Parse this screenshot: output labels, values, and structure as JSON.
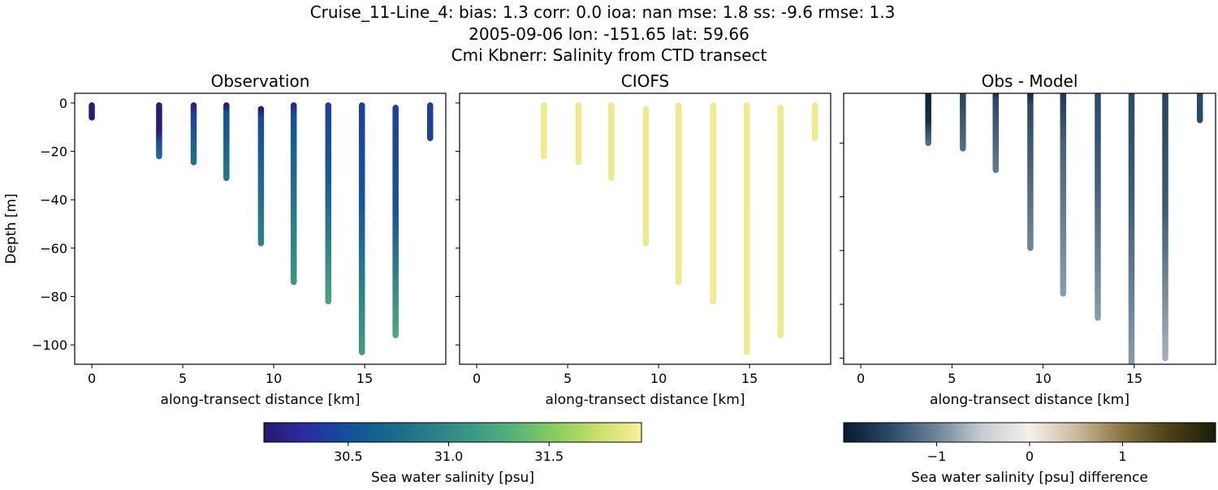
{
  "title_lines": [
    "Cruise_11-Line_4: bias: 1.3  corr: 0.0  ioa: nan  mse: 1.8  ss: -9.6  rmse: 1.3",
    "2005-09-06 lon: -151.65 lat: 59.66",
    "Cmi Kbnerr: Salinity from CTD transect"
  ],
  "chart_data": [
    {
      "type": "scatter",
      "title": "Observation",
      "xlabel": "along-transect distance [km]",
      "ylabel": "Depth [m]",
      "xlim": [
        -0.94,
        19.46
      ],
      "ylim": [
        -108,
        4
      ],
      "xticks": [
        0,
        5,
        10,
        15
      ],
      "yticks": [
        0,
        -20,
        -40,
        -60,
        -80,
        -100
      ],
      "colormap": "haline",
      "profiles": [
        {
          "x": 0.0,
          "stops": [
            [
              -1,
              30.1
            ],
            [
              -6,
              30.12
            ]
          ]
        },
        {
          "x": 3.7,
          "stops": [
            [
              -1,
              30.1
            ],
            [
              -12,
              30.12
            ],
            [
              -15,
              30.4
            ],
            [
              -22,
              30.75
            ]
          ]
        },
        {
          "x": 5.6,
          "stops": [
            [
              -1,
              30.15
            ],
            [
              -5,
              30.4
            ],
            [
              -24.5,
              30.8
            ]
          ]
        },
        {
          "x": 7.4,
          "stops": [
            [
              -1,
              30.1
            ],
            [
              -4,
              30.5
            ],
            [
              -31,
              30.85
            ]
          ]
        },
        {
          "x": 9.3,
          "stops": [
            [
              -2.5,
              30.1
            ],
            [
              -6,
              30.45
            ],
            [
              -58,
              30.95
            ]
          ]
        },
        {
          "x": 11.1,
          "stops": [
            [
              -1,
              30.2
            ],
            [
              -5,
              30.5
            ],
            [
              -20,
              30.65
            ],
            [
              -74,
              31.1
            ]
          ]
        },
        {
          "x": 13.0,
          "stops": [
            [
              -1,
              30.4
            ],
            [
              -30,
              30.6
            ],
            [
              -82,
              31.2
            ]
          ]
        },
        {
          "x": 14.85,
          "stops": [
            [
              -1,
              30.4
            ],
            [
              -40,
              30.55
            ],
            [
              -103,
              31.15
            ]
          ]
        },
        {
          "x": 16.7,
          "stops": [
            [
              -2,
              30.4
            ],
            [
              -45,
              30.55
            ],
            [
              -96,
              31.25
            ]
          ]
        },
        {
          "x": 18.6,
          "stops": [
            [
              -1,
              30.38
            ],
            [
              -14.5,
              30.4
            ]
          ]
        }
      ]
    },
    {
      "type": "scatter",
      "title": "CIOFS",
      "xlabel": "along-transect distance [km]",
      "xlim": [
        -0.94,
        19.46
      ],
      "ylim": [
        -108,
        4
      ],
      "xticks": [
        0,
        5,
        10,
        15
      ],
      "yticks": [
        0,
        -20,
        -40,
        -60,
        -80,
        -100
      ],
      "colormap": "haline",
      "profiles": [
        {
          "x": 3.7,
          "stops": [
            [
              -1,
              31.9
            ],
            [
              -22,
              31.9
            ]
          ]
        },
        {
          "x": 5.6,
          "stops": [
            [
              -1,
              31.9
            ],
            [
              -24.5,
              31.9
            ]
          ]
        },
        {
          "x": 7.4,
          "stops": [
            [
              -1,
              31.9
            ],
            [
              -31,
              31.9
            ]
          ]
        },
        {
          "x": 9.3,
          "stops": [
            [
              -2.5,
              31.9
            ],
            [
              -58,
              31.9
            ]
          ]
        },
        {
          "x": 11.1,
          "stops": [
            [
              -1,
              31.9
            ],
            [
              -74,
              31.9
            ]
          ]
        },
        {
          "x": 13.0,
          "stops": [
            [
              -1,
              31.9
            ],
            [
              -82,
              31.9
            ]
          ]
        },
        {
          "x": 14.85,
          "stops": [
            [
              -1,
              31.9
            ],
            [
              -103,
              31.9
            ]
          ]
        },
        {
          "x": 16.7,
          "stops": [
            [
              -2,
              31.9
            ],
            [
              -96,
              31.9
            ]
          ]
        },
        {
          "x": 18.6,
          "stops": [
            [
              -1,
              31.9
            ],
            [
              -14.5,
              31.9
            ]
          ]
        }
      ]
    },
    {
      "type": "scatter",
      "title": "Obs - Model",
      "xlabel": "along-transect distance [km]",
      "xlim": [
        -0.94,
        19.46
      ],
      "ylim": [
        -102.3,
        -1.5
      ],
      "xticks": [
        0,
        5,
        10,
        15
      ],
      "yticks": [
        -20,
        -40,
        -60,
        -80,
        -100
      ],
      "colormap": "diff",
      "profiles": [
        {
          "x": 3.7,
          "stops": [
            [
              -1,
              -1.9
            ],
            [
              -12,
              -1.8
            ],
            [
              -15,
              -1.5
            ],
            [
              -20,
              -1.2
            ]
          ]
        },
        {
          "x": 5.6,
          "stops": [
            [
              -1,
              -1.6
            ],
            [
              -22,
              -1.2
            ]
          ]
        },
        {
          "x": 7.4,
          "stops": [
            [
              -1,
              -1.8
            ],
            [
              -4,
              -1.5
            ],
            [
              -30,
              -1.1
            ]
          ]
        },
        {
          "x": 9.3,
          "stops": [
            [
              -1,
              -1.9
            ],
            [
              -6,
              -1.5
            ],
            [
              -59,
              -1.0
            ]
          ]
        },
        {
          "x": 11.1,
          "stops": [
            [
              -1,
              -1.7
            ],
            [
              -20,
              -1.3
            ],
            [
              -76,
              -0.85
            ]
          ]
        },
        {
          "x": 13.0,
          "stops": [
            [
              -1,
              -1.5
            ],
            [
              -30,
              -1.35
            ],
            [
              -85,
              -0.85
            ]
          ]
        },
        {
          "x": 14.85,
          "stops": [
            [
              -1,
              -1.5
            ],
            [
              -40,
              -1.35
            ],
            [
              -110,
              -0.8
            ]
          ]
        },
        {
          "x": 16.7,
          "stops": [
            [
              -1,
              -1.55
            ],
            [
              -45,
              -1.35
            ],
            [
              -100,
              -0.7
            ]
          ]
        },
        {
          "x": 18.6,
          "stops": [
            [
              -1,
              -1.5
            ],
            [
              -11.5,
              -1.5
            ]
          ]
        }
      ]
    }
  ],
  "colorbars": [
    {
      "label": "Sea water salinity [psu]",
      "range": [
        30.08,
        31.96
      ],
      "ticks": [
        "30.5",
        "31.0",
        "31.5"
      ],
      "tick_values": [
        30.5,
        31.0,
        31.5
      ],
      "colormap": "haline"
    },
    {
      "label": "Sea water salinity [psu] difference",
      "range": [
        -2.0,
        2.0
      ],
      "ticks": [
        "−1",
        "0",
        "1"
      ],
      "tick_values": [
        -1,
        0,
        1
      ],
      "colormap": "diff"
    }
  ],
  "colormaps": {
    "haline": [
      "#2a186c",
      "#2a2da3",
      "#11509a",
      "#16698c",
      "#2b7f87",
      "#3a9a85",
      "#56b577",
      "#8dcf5c",
      "#cbe06c",
      "#fdef9a"
    ],
    "diff": [
      "#071a30",
      "#2a4a68",
      "#6c8599",
      "#c8cdd2",
      "#f5f1ec",
      "#cbbb9c",
      "#8b7442",
      "#4b4119",
      "#1c1c09"
    ]
  }
}
